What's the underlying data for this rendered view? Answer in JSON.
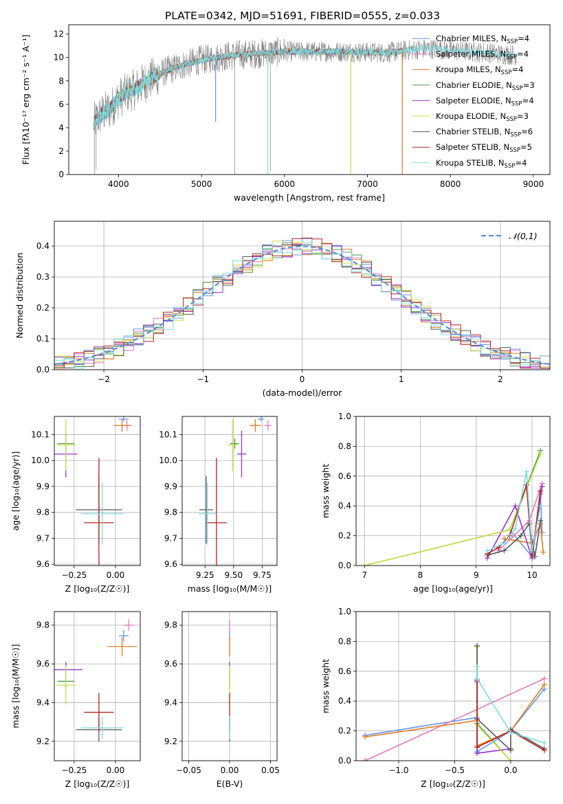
{
  "colors": {
    "Chabrier MILES": "#6495ed",
    "Salpeter MILES": "#e377c2",
    "Kroupa MILES": "#e07b20",
    "Chabrier ELODIE": "#4c9a4c",
    "Salpeter ELODIE": "#9932cc",
    "Kroupa ELODIE": "#c8e04a",
    "Chabrier STELIB": "#555555",
    "Salpeter STELIB": "#b22222",
    "Kroupa STELIB": "#7fdbe0",
    "gauss": "#5b8fd8",
    "grid": "#b0b0b0"
  },
  "chart_data": [
    {
      "id": "spectrum",
      "type": "line",
      "title": "PLATE=0342, MJD=51691, FIBERID=0555, z=0.033",
      "xlabel": "wavelength [Angstrom, rest frame]",
      "ylabel": "Flux [fλ10⁻¹⁷ erg cm⁻² s⁻¹ A⁻¹]",
      "xlim": [
        3400,
        9200
      ],
      "ylim": [
        0,
        12.8
      ],
      "xticks": [
        4000,
        5000,
        6000,
        7000,
        8000,
        9000
      ],
      "yticks": [
        0,
        2,
        4,
        6,
        8,
        10,
        12
      ],
      "grid": false,
      "legend_position": "top-right",
      "legend": [
        {
          "label": "Chabrier MILES, N",
          "sub": "SSP",
          "suffix": "=4",
          "key": "Chabrier MILES"
        },
        {
          "label": "Salpeter MILES, N",
          "sub": "SSP",
          "suffix": "=4",
          "key": "Salpeter MILES"
        },
        {
          "label": "Kroupa MILES, N",
          "sub": "SSP",
          "suffix": "=4",
          "key": "Kroupa MILES"
        },
        {
          "label": "Chabrier ELODIE, N",
          "sub": "SSP",
          "suffix": "=3",
          "key": "Chabrier ELODIE"
        },
        {
          "label": "Salpeter ELODIE, N",
          "sub": "SSP",
          "suffix": "=4",
          "key": "Salpeter ELODIE"
        },
        {
          "label": "Kroupa ELODIE, N",
          "sub": "SSP",
          "suffix": "=3",
          "key": "Kroupa ELODIE"
        },
        {
          "label": "Chabrier STELIB, N",
          "sub": "SSP",
          "suffix": "=6",
          "key": "Chabrier STELIB"
        },
        {
          "label": "Salpeter STELIB, N",
          "sub": "SSP",
          "suffix": "=5",
          "key": "Salpeter STELIB"
        },
        {
          "label": "Kroupa STELIB, N",
          "sub": "SSP",
          "suffix": "=4",
          "key": "Kroupa STELIB"
        }
      ],
      "continuum": {
        "x": [
          3700,
          3800,
          3900,
          4000,
          4100,
          4200,
          4300,
          4400,
          4500,
          4600,
          4800,
          5000,
          5200,
          5400,
          5600,
          5800,
          6000,
          6200,
          6400,
          6600,
          6800,
          7000,
          7200,
          7400,
          7600,
          7800,
          8000,
          8200,
          8400,
          8600,
          8800
        ],
        "y": [
          4.4,
          5.2,
          5.6,
          6.5,
          7.0,
          7.3,
          7.8,
          8.2,
          8.6,
          8.9,
          9.4,
          9.8,
          10.0,
          10.2,
          10.3,
          10.4,
          10.5,
          10.5,
          10.5,
          10.5,
          10.5,
          10.45,
          10.4,
          10.55,
          10.7,
          10.75,
          10.6,
          10.5,
          10.45,
          10.3,
          10.2
        ]
      },
      "model_range": [
        3700,
        7420
      ],
      "drops": [
        {
          "x": 5170,
          "ymin": 4.5,
          "key": "Chabrier MILES"
        },
        {
          "x": 5800,
          "ymin": 0,
          "key": "Kroupa STELIB"
        },
        {
          "x": 6800,
          "ymin": 0,
          "key": "Kroupa ELODIE"
        },
        {
          "x": 7420,
          "ymin": 0,
          "key": "Kroupa MILES"
        }
      ],
      "data_spikes": [
        {
          "x": 3710,
          "y": 0
        },
        {
          "x": 3730,
          "y": 0.4
        },
        {
          "x": 5400,
          "y": 0
        },
        {
          "x": 5830,
          "y": 0.2
        }
      ]
    },
    {
      "id": "residuals",
      "type": "line",
      "xlabel": "(data-model)/error",
      "ylabel": "Normed distribution",
      "xlim": [
        -2.5,
        2.5
      ],
      "ylim": [
        0,
        0.48
      ],
      "xticks": [
        -2,
        -1,
        0,
        1,
        2
      ],
      "xtick_labels": [
        "−2",
        "−1",
        "0",
        "1",
        "2"
      ],
      "yticks": [
        0.0,
        0.1,
        0.2,
        0.3,
        0.4
      ],
      "ytick_labels": [
        "0.0",
        "0.1",
        "0.2",
        "0.3",
        "0.4"
      ],
      "grid": true,
      "legend_position": "top-right",
      "legend_label": "𝒩(0,1)",
      "bin_width": 0.1,
      "hist_centers_start": -2.45,
      "gauss": {
        "mu": 0,
        "sigma": 1
      }
    },
    {
      "id": "age-vs-z",
      "type": "scatter",
      "xlabel": "Z [log₁₀(Z/Z☉)]",
      "ylabel": "age  [log₁₀(age/yr)]",
      "xlim": [
        -0.37,
        0.15
      ],
      "ylim": [
        9.595,
        10.17
      ],
      "xticks": [
        -0.25,
        0.0
      ],
      "xtick_labels": [
        "−0.25",
        "0.00"
      ],
      "yticks": [
        9.6,
        9.7,
        9.8,
        9.9,
        10.0,
        10.1
      ],
      "ytick_labels": [
        "9.6",
        "9.7",
        "9.8",
        "9.9",
        "10.0",
        "10.1"
      ],
      "grid": true,
      "points": [
        {
          "key": "Chabrier MILES",
          "x": 0.05,
          "y": 10.16,
          "xerr": 0.03,
          "yerr": 0.01
        },
        {
          "key": "Salpeter MILES",
          "x": 0.07,
          "y": 10.135,
          "xerr": 0.03,
          "yerr": 0.02
        },
        {
          "key": "Kroupa MILES",
          "x": 0.04,
          "y": 10.135,
          "xerr": 0.05,
          "yerr": 0.025
        },
        {
          "key": "Chabrier ELODIE",
          "x": -0.3,
          "y": 10.065,
          "xerr": 0.05,
          "yerr": 0.02
        },
        {
          "key": "Salpeter ELODIE",
          "x": -0.3,
          "y": 10.025,
          "xerr": 0.07,
          "yerr": 0.09
        },
        {
          "key": "Kroupa ELODIE",
          "x": -0.3,
          "y": 10.06,
          "xerr": 0.06,
          "yerr": 0.1
        },
        {
          "key": "Chabrier STELIB",
          "x": -0.1,
          "y": 9.81,
          "xerr": 0.14,
          "yerr": 0.13
        },
        {
          "key": "Salpeter STELIB",
          "x": -0.1,
          "y": 9.76,
          "xerr": 0.09,
          "yerr": 0.25
        },
        {
          "key": "Kroupa STELIB",
          "x": -0.08,
          "y": 9.795,
          "xerr": 0.13,
          "yerr": 0.12
        }
      ]
    },
    {
      "id": "age-vs-mass",
      "type": "scatter",
      "xlabel": "mass [log₁₀(M/M☉)]",
      "ylabel": "",
      "xlim": [
        9.05,
        9.88
      ],
      "ylim": [
        9.595,
        10.17
      ],
      "xticks": [
        9.25,
        9.5,
        9.75
      ],
      "xtick_labels": [
        "9.25",
        "9.50",
        "9.75"
      ],
      "yticks": [
        9.6,
        9.7,
        9.8,
        9.9,
        10.0,
        10.1
      ],
      "ytick_labels": [
        "9.6",
        "9.7",
        "9.8",
        "9.9",
        "10.0",
        "10.1"
      ],
      "grid": true,
      "points": [
        {
          "key": "Chabrier MILES",
          "x": 9.74,
          "y": 10.16,
          "xerr": 0.03,
          "yerr": 0.01
        },
        {
          "key": "Salpeter MILES",
          "x": 9.8,
          "y": 10.135,
          "xerr": 0.03,
          "yerr": 0.02
        },
        {
          "key": "Kroupa MILES",
          "x": 9.69,
          "y": 10.135,
          "xerr": 0.05,
          "yerr": 0.025
        },
        {
          "key": "Chabrier ELODIE",
          "x": 9.51,
          "y": 10.065,
          "xerr": 0.04,
          "yerr": 0.02
        },
        {
          "key": "Salpeter ELODIE",
          "x": 9.57,
          "y": 10.025,
          "xerr": 0.04,
          "yerr": 0.09
        },
        {
          "key": "Kroupa ELODIE",
          "x": 9.49,
          "y": 10.06,
          "xerr": 0.04,
          "yerr": 0.1
        },
        {
          "key": "Chabrier STELIB",
          "x": 9.26,
          "y": 9.81,
          "xerr": 0.06,
          "yerr": 0.13
        },
        {
          "key": "Salpeter STELIB",
          "x": 9.35,
          "y": 9.76,
          "xerr": 0.09,
          "yerr": 0.25
        },
        {
          "key": "Kroupa STELIB",
          "x": 9.27,
          "y": 9.795,
          "xerr": 0.08,
          "yerr": 0.12
        }
      ]
    },
    {
      "id": "mw-vs-age",
      "type": "line",
      "xlabel": "age  [log₁₀(age/yr)]",
      "ylabel": "mass weight",
      "xlim": [
        6.85,
        10.32
      ],
      "ylim": [
        0,
        1.0
      ],
      "xticks": [
        7,
        8,
        9,
        10
      ],
      "xtick_labels": [
        "7",
        "8",
        "9",
        "10"
      ],
      "yticks": [
        0.0,
        0.2,
        0.4,
        0.6,
        0.8,
        1.0
      ],
      "ytick_labels": [
        "0.0",
        "0.2",
        "0.4",
        "0.6",
        "0.8",
        "1.0"
      ],
      "grid": true,
      "series": [
        {
          "key": "Chabrier MILES",
          "x": [
            9.6,
            10.0,
            10.15,
            10.18
          ],
          "y": [
            0.24,
            0.06,
            0.48,
            0.22
          ]
        },
        {
          "key": "Salpeter MILES",
          "x": [
            9.4,
            9.95,
            10.18
          ],
          "y": [
            0.1,
            0.3,
            0.55
          ]
        },
        {
          "key": "Kroupa MILES",
          "x": [
            9.5,
            10.0,
            10.15,
            10.2
          ],
          "y": [
            0.18,
            0.15,
            0.28,
            0.09
          ]
        },
        {
          "key": "Chabrier ELODIE",
          "x": [
            7.0,
            9.6,
            10.15
          ],
          "y": [
            0.0,
            0.24,
            0.77
          ]
        },
        {
          "key": "Salpeter ELODIE",
          "x": [
            9.2,
            9.7,
            10.0,
            10.18
          ],
          "y": [
            0.05,
            0.4,
            0.05,
            0.53
          ]
        },
        {
          "key": "Kroupa ELODIE",
          "x": [
            7.0,
            9.6,
            10.15
          ],
          "y": [
            0.0,
            0.24,
            0.75
          ]
        },
        {
          "key": "Chabrier STELIB",
          "x": [
            9.2,
            9.5,
            9.8,
            9.95,
            10.05,
            10.15
          ],
          "y": [
            0.07,
            0.1,
            0.2,
            0.28,
            0.06,
            0.3
          ]
        },
        {
          "key": "Salpeter STELIB",
          "x": [
            9.2,
            9.4,
            9.6,
            9.9,
            10.0,
            10.15
          ],
          "y": [
            0.08,
            0.12,
            0.2,
            0.54,
            0.07,
            0.5
          ]
        },
        {
          "key": "Kroupa STELIB",
          "x": [
            9.2,
            9.5,
            9.7,
            9.9,
            10.0,
            10.15
          ],
          "y": [
            0.1,
            0.15,
            0.25,
            0.63,
            0.1,
            0.4
          ]
        }
      ]
    },
    {
      "id": "mass-vs-z",
      "type": "scatter",
      "xlabel": "Z [log₁₀(Z/Z☉)]",
      "ylabel": "mass [log₁₀(M/M☉)]",
      "xlim": [
        -0.37,
        0.15
      ],
      "ylim": [
        9.1,
        9.87
      ],
      "xticks": [
        -0.25,
        0.0
      ],
      "xtick_labels": [
        "−0.25",
        "0.00"
      ],
      "yticks": [
        9.2,
        9.4,
        9.6,
        9.8
      ],
      "ytick_labels": [
        "9.2",
        "9.4",
        "9.6",
        "9.8"
      ],
      "grid": true,
      "points": [
        {
          "key": "Chabrier MILES",
          "x": 0.05,
          "y": 9.745,
          "xerr": 0.03,
          "yerr": 0.03
        },
        {
          "key": "Salpeter MILES",
          "x": 0.08,
          "y": 9.8,
          "xerr": 0.03,
          "yerr": 0.03
        },
        {
          "key": "Kroupa MILES",
          "x": 0.04,
          "y": 9.69,
          "xerr": 0.09,
          "yerr": 0.05
        },
        {
          "key": "Chabrier ELODIE",
          "x": -0.3,
          "y": 9.51,
          "xerr": 0.05,
          "yerr": 0.04
        },
        {
          "key": "Salpeter ELODIE",
          "x": -0.3,
          "y": 9.57,
          "xerr": 0.1,
          "yerr": 0.04
        },
        {
          "key": "Kroupa ELODIE",
          "x": -0.3,
          "y": 9.49,
          "xerr": 0.06,
          "yerr": 0.1
        },
        {
          "key": "Chabrier STELIB",
          "x": -0.1,
          "y": 9.26,
          "xerr": 0.14,
          "yerr": 0.06
        },
        {
          "key": "Salpeter STELIB",
          "x": -0.1,
          "y": 9.35,
          "xerr": 0.09,
          "yerr": 0.1
        },
        {
          "key": "Kroupa STELIB",
          "x": -0.08,
          "y": 9.27,
          "xerr": 0.13,
          "yerr": 0.06
        }
      ]
    },
    {
      "id": "mass-vs-ebv",
      "type": "scatter",
      "xlabel": "E(B-V)",
      "ylabel": "",
      "xlim": [
        -0.058,
        0.058
      ],
      "ylim": [
        9.1,
        9.87
      ],
      "xticks": [
        -0.05,
        0.0,
        0.05
      ],
      "xtick_labels": [
        "−0.05",
        "0.00",
        "0.05"
      ],
      "yticks": [
        9.2,
        9.4,
        9.6,
        9.8
      ],
      "ytick_labels": [
        "9.2",
        "9.4",
        "9.6",
        "9.8"
      ],
      "grid": true,
      "points": [
        {
          "key": "Chabrier MILES",
          "x": 0,
          "y": 9.745,
          "xerr": 0,
          "yerr": 0.03
        },
        {
          "key": "Salpeter MILES",
          "x": 0,
          "y": 9.8,
          "xerr": 0,
          "yerr": 0.03
        },
        {
          "key": "Kroupa MILES",
          "x": 0,
          "y": 9.69,
          "xerr": 0,
          "yerr": 0.05
        },
        {
          "key": "Chabrier ELODIE",
          "x": 0,
          "y": 9.51,
          "xerr": 0,
          "yerr": 0.04
        },
        {
          "key": "Salpeter ELODIE",
          "x": 0,
          "y": 9.57,
          "xerr": 0,
          "yerr": 0.04
        },
        {
          "key": "Kroupa ELODIE",
          "x": 0,
          "y": 9.49,
          "xerr": 0,
          "yerr": 0.1
        },
        {
          "key": "Chabrier STELIB",
          "x": 0,
          "y": 9.26,
          "xerr": 0,
          "yerr": 0.06
        },
        {
          "key": "Salpeter STELIB",
          "x": 0,
          "y": 9.35,
          "xerr": 0,
          "yerr": 0.1
        },
        {
          "key": "Kroupa STELIB",
          "x": 0,
          "y": 9.27,
          "xerr": 0,
          "yerr": 0.06
        }
      ]
    },
    {
      "id": "mw-vs-z",
      "type": "line",
      "xlabel": "Z [log₁₀(Z/Z☉)]",
      "ylabel": "mass weight",
      "xlim": [
        -1.38,
        0.35
      ],
      "ylim": [
        0,
        1.0
      ],
      "xticks": [
        -1.0,
        -0.5,
        0.0
      ],
      "xtick_labels": [
        "−1.0",
        "−0.5",
        "0.0"
      ],
      "yticks": [
        0.0,
        0.2,
        0.4,
        0.6,
        0.8,
        1.0
      ],
      "ytick_labels": [
        "0.0",
        "0.2",
        "0.4",
        "0.6",
        "0.8",
        "1.0"
      ],
      "grid": true,
      "series": [
        {
          "key": "Chabrier MILES",
          "x": [
            -1.3,
            -0.3,
            -0.3,
            0.0,
            0.3
          ],
          "y": [
            0.17,
            0.29,
            0.06,
            0.2,
            0.48
          ]
        },
        {
          "key": "Salpeter MILES",
          "x": [
            -1.3,
            -1.3,
            0.3
          ],
          "y": [
            0.0,
            0.0,
            0.55
          ]
        },
        {
          "key": "Kroupa MILES",
          "x": [
            -1.3,
            -0.3,
            -0.3,
            0.0,
            0.3
          ],
          "y": [
            0.16,
            0.27,
            0.1,
            0.2,
            0.51
          ]
        },
        {
          "key": "Chabrier ELODIE",
          "x": [
            -0.3,
            -0.3,
            0.0
          ],
          "y": [
            0.77,
            0.25,
            0.0
          ]
        },
        {
          "key": "Salpeter ELODIE",
          "x": [
            -0.3,
            -0.3,
            0.0
          ],
          "y": [
            0.53,
            0.05,
            0.08
          ]
        },
        {
          "key": "Kroupa ELODIE",
          "x": [
            -0.3,
            -0.3,
            0.0
          ],
          "y": [
            0.76,
            0.24,
            0.0
          ]
        },
        {
          "key": "Chabrier STELIB",
          "x": [
            -0.3,
            -0.3,
            0.0,
            0.0,
            0.3
          ],
          "y": [
            0.77,
            0.28,
            0.07,
            0.21,
            0.08
          ]
        },
        {
          "key": "Salpeter STELIB",
          "x": [
            -0.3,
            -0.3,
            0.0,
            0.3
          ],
          "y": [
            0.54,
            0.09,
            0.2,
            0.07
          ]
        },
        {
          "key": "Kroupa STELIB",
          "x": [
            -0.3,
            -0.3,
            0.0,
            0.3
          ],
          "y": [
            0.63,
            0.55,
            0.19,
            0.12
          ]
        }
      ]
    }
  ]
}
